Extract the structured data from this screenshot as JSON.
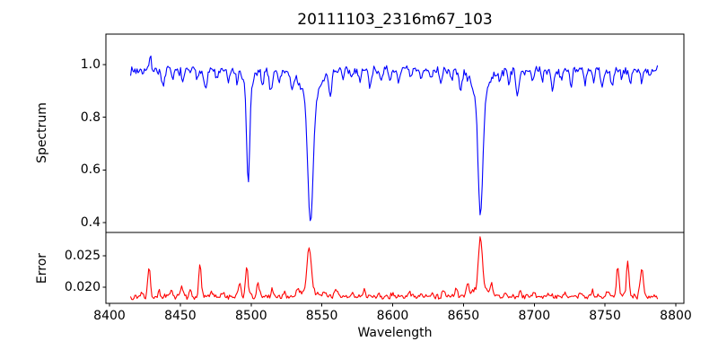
{
  "figure": {
    "title": "20111103_2316m67_103",
    "x_axis": {
      "label": "Wavelength",
      "tick_labels": [
        "8400",
        "8450",
        "8500",
        "8550",
        "8600",
        "8650",
        "8700",
        "8750",
        "8800"
      ]
    },
    "spectrum_axis": {
      "label": "Spectrum",
      "tick_labels": [
        "1.0",
        "0.8",
        "0.6",
        "0.4"
      ]
    },
    "error_axis": {
      "label": "Error",
      "tick_labels": [
        "0.025",
        "0.020"
      ]
    }
  },
  "chart_data": [
    {
      "type": "line",
      "name": "spectrum",
      "title": "20111103_2316m67_103",
      "xlabel": "Wavelength",
      "ylabel": "Spectrum",
      "legend": null,
      "grid": false,
      "color": "#0000ff",
      "xlim": [
        8397.5,
        8805.7
      ],
      "ylim": [
        0.363,
        1.116
      ],
      "x_ticks": [
        8400,
        8450,
        8500,
        8550,
        8600,
        8650,
        8700,
        8750,
        8800
      ],
      "y_ticks": [
        1.0,
        0.8,
        0.6,
        0.4
      ],
      "x_start": 8415,
      "x_end": 8787,
      "x_step": 0.75,
      "continuum": 0.978,
      "noise_amplitude": 0.02,
      "noise_seed": 7,
      "absorption_minima": [
        {
          "wavelength": 8498,
          "flux": 0.55
        },
        {
          "wavelength": 8542,
          "flux": 0.4
        },
        {
          "wavelength": 8662,
          "flux": 0.42
        }
      ],
      "emission_spike": {
        "wavelength": 8429,
        "flux": 1.05
      },
      "features": [
        [
          8429,
          0.07,
          0.6
        ],
        [
          8438,
          -0.07,
          0.9
        ],
        [
          8445,
          -0.04,
          0.7
        ],
        [
          8452,
          -0.05,
          0.8
        ],
        [
          8462,
          -0.04,
          0.7
        ],
        [
          8468,
          -0.07,
          0.9
        ],
        [
          8476,
          -0.04,
          0.7
        ],
        [
          8484,
          -0.05,
          0.8
        ],
        [
          8490,
          -0.04,
          0.7
        ],
        [
          8498,
          -0.38,
          1.1
        ],
        [
          8498,
          -0.05,
          4.0
        ],
        [
          8508,
          -0.05,
          0.8
        ],
        [
          8514,
          -0.08,
          1.0
        ],
        [
          8520,
          -0.05,
          0.8
        ],
        [
          8529,
          -0.07,
          0.9
        ],
        [
          8542,
          -0.46,
          1.8
        ],
        [
          8542,
          -0.12,
          6.0
        ],
        [
          8556,
          -0.09,
          0.9
        ],
        [
          8565,
          -0.04,
          0.7
        ],
        [
          8571,
          -0.03,
          0.7
        ],
        [
          8577,
          -0.04,
          0.7
        ],
        [
          8584,
          -0.06,
          0.8
        ],
        [
          8592,
          -0.03,
          0.7
        ],
        [
          8598,
          -0.05,
          0.8
        ],
        [
          8604,
          -0.04,
          0.7
        ],
        [
          8613,
          -0.03,
          0.7
        ],
        [
          8620,
          -0.04,
          0.7
        ],
        [
          8627,
          -0.03,
          0.7
        ],
        [
          8634,
          -0.04,
          0.8
        ],
        [
          8642,
          -0.04,
          0.7
        ],
        [
          8648,
          -0.08,
          0.9
        ],
        [
          8662,
          -0.46,
          1.6
        ],
        [
          8662,
          -0.1,
          5.5
        ],
        [
          8676,
          -0.04,
          0.7
        ],
        [
          8682,
          -0.05,
          0.7
        ],
        [
          8688,
          -0.1,
          1.0
        ],
        [
          8699,
          -0.05,
          0.8
        ],
        [
          8706,
          -0.04,
          0.7
        ],
        [
          8713,
          -0.08,
          0.9
        ],
        [
          8719,
          -0.04,
          0.7
        ],
        [
          8726,
          -0.05,
          0.8
        ],
        [
          8736,
          -0.06,
          0.8
        ],
        [
          8742,
          -0.04,
          0.7
        ],
        [
          8748,
          -0.07,
          0.9
        ],
        [
          8755,
          -0.06,
          0.8
        ],
        [
          8762,
          -0.04,
          0.7
        ],
        [
          8768,
          -0.05,
          0.8
        ],
        [
          8776,
          -0.04,
          0.7
        ],
        [
          8782,
          -0.03,
          0.7
        ]
      ]
    },
    {
      "type": "line",
      "name": "error",
      "xlabel": "Wavelength",
      "ylabel": "Error",
      "legend": null,
      "grid": false,
      "color": "#ff0000",
      "xlim": [
        8397.5,
        8805.7
      ],
      "ylim": [
        0.01743,
        0.02871
      ],
      "x_ticks": [
        8400,
        8450,
        8500,
        8550,
        8600,
        8650,
        8700,
        8750,
        8800
      ],
      "y_ticks": [
        0.025,
        0.02
      ],
      "x_start": 8415,
      "x_end": 8787,
      "x_step": 0.75,
      "baseline": 0.0185,
      "noise_amplitude": 0.0005,
      "noise_seed": 13,
      "peaks": [
        {
          "wavelength": 8428,
          "value": 0.0233
        },
        {
          "wavelength": 8464,
          "value": 0.0233
        },
        {
          "wavelength": 8497,
          "value": 0.0235
        },
        {
          "wavelength": 8541,
          "value": 0.0265
        },
        {
          "wavelength": 8662,
          "value": 0.0281
        },
        {
          "wavelength": 8759,
          "value": 0.0231
        },
        {
          "wavelength": 8766,
          "value": 0.0241
        },
        {
          "wavelength": 8776,
          "value": 0.0233
        }
      ],
      "features": [
        [
          8423,
          0.0008,
          0.8
        ],
        [
          8428,
          0.0048,
          0.9
        ],
        [
          8435,
          0.0008,
          0.8
        ],
        [
          8444,
          0.001,
          0.8
        ],
        [
          8451,
          0.0018,
          0.9
        ],
        [
          8457,
          0.0008,
          0.7
        ],
        [
          8464,
          0.0048,
          0.9
        ],
        [
          8472,
          0.0008,
          0.7
        ],
        [
          8480,
          0.0006,
          0.7
        ],
        [
          8492,
          0.0022,
          0.9
        ],
        [
          8497,
          0.005,
          0.9
        ],
        [
          8505,
          0.0022,
          0.8
        ],
        [
          8515,
          0.0012,
          0.8
        ],
        [
          8524,
          0.0008,
          0.7
        ],
        [
          8533,
          0.001,
          0.8
        ],
        [
          8541,
          0.0068,
          1.4
        ],
        [
          8541,
          0.0012,
          4.5
        ],
        [
          8552,
          0.001,
          0.8
        ],
        [
          8560,
          0.0012,
          0.9
        ],
        [
          8572,
          0.0008,
          0.7
        ],
        [
          8580,
          0.001,
          0.8
        ],
        [
          8590,
          0.0006,
          0.7
        ],
        [
          8600,
          0.0007,
          0.7
        ],
        [
          8612,
          0.0008,
          0.7
        ],
        [
          8620,
          0.0006,
          0.7
        ],
        [
          8628,
          0.0009,
          0.7
        ],
        [
          8636,
          0.0011,
          0.8
        ],
        [
          8645,
          0.0014,
          0.8
        ],
        [
          8653,
          0.0018,
          1.0
        ],
        [
          8662,
          0.0082,
          1.3
        ],
        [
          8662,
          0.0014,
          4.5
        ],
        [
          8670,
          0.0018,
          0.9
        ],
        [
          8680,
          0.0008,
          0.7
        ],
        [
          8690,
          0.0008,
          0.7
        ],
        [
          8700,
          0.0007,
          0.7
        ],
        [
          8710,
          0.0007,
          0.7
        ],
        [
          8722,
          0.0006,
          0.7
        ],
        [
          8732,
          0.0008,
          0.7
        ],
        [
          8741,
          0.001,
          0.8
        ],
        [
          8752,
          0.0012,
          0.8
        ],
        [
          8759,
          0.0046,
          0.9
        ],
        [
          8766,
          0.0056,
          0.9
        ],
        [
          8776,
          0.0048,
          1.1
        ]
      ]
    }
  ]
}
